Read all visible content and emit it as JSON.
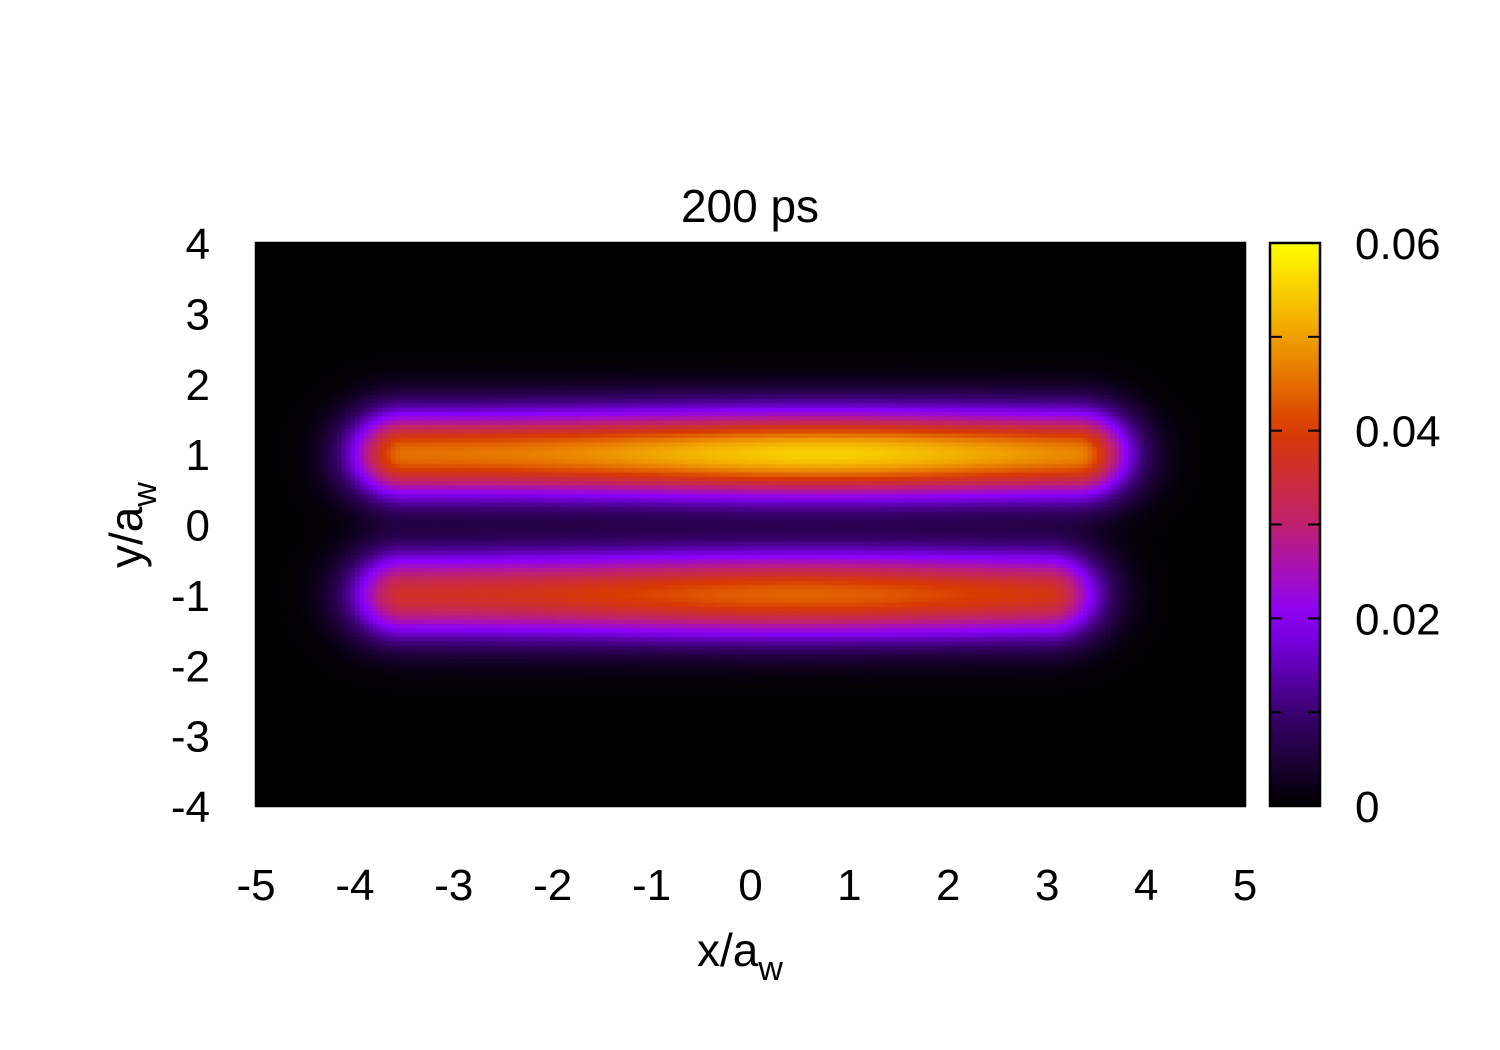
{
  "chart_data": {
    "type": "heatmap",
    "title": "200 ps",
    "xlabel": "x/a",
    "xlabel_subscript": "w",
    "ylabel": "y/a",
    "ylabel_subscript": "w",
    "xlim": [
      -5,
      5
    ],
    "ylim": [
      -4,
      4
    ],
    "x_ticks": [
      "-5",
      "-4",
      "-3",
      "-2",
      "-1",
      "0",
      "1",
      "2",
      "3",
      "4",
      "5"
    ],
    "y_ticks": [
      "4",
      "3",
      "2",
      "1",
      "0",
      "-1",
      "-2",
      "-3",
      "-4"
    ],
    "colorbar": {
      "range": [
        0,
        0.06
      ],
      "tick_labels": [
        "0.06",
        "0.04",
        "0.02",
        "0"
      ],
      "colors": [
        "#000000",
        "#3a0070",
        "#8a00ff",
        "#c02070",
        "#d83a00",
        "#f0a000",
        "#ffff00"
      ]
    },
    "lobes": [
      {
        "name": "upper",
        "y_center": 1.0,
        "x_range": [
          -3.5,
          3.3
        ],
        "peak_x": 0.7,
        "peak_value": 0.055
      },
      {
        "name": "lower",
        "y_center": -1.0,
        "x_range": [
          -3.5,
          3.0
        ],
        "peak_x": 0.5,
        "peak_value": 0.044
      }
    ],
    "grid": false
  }
}
